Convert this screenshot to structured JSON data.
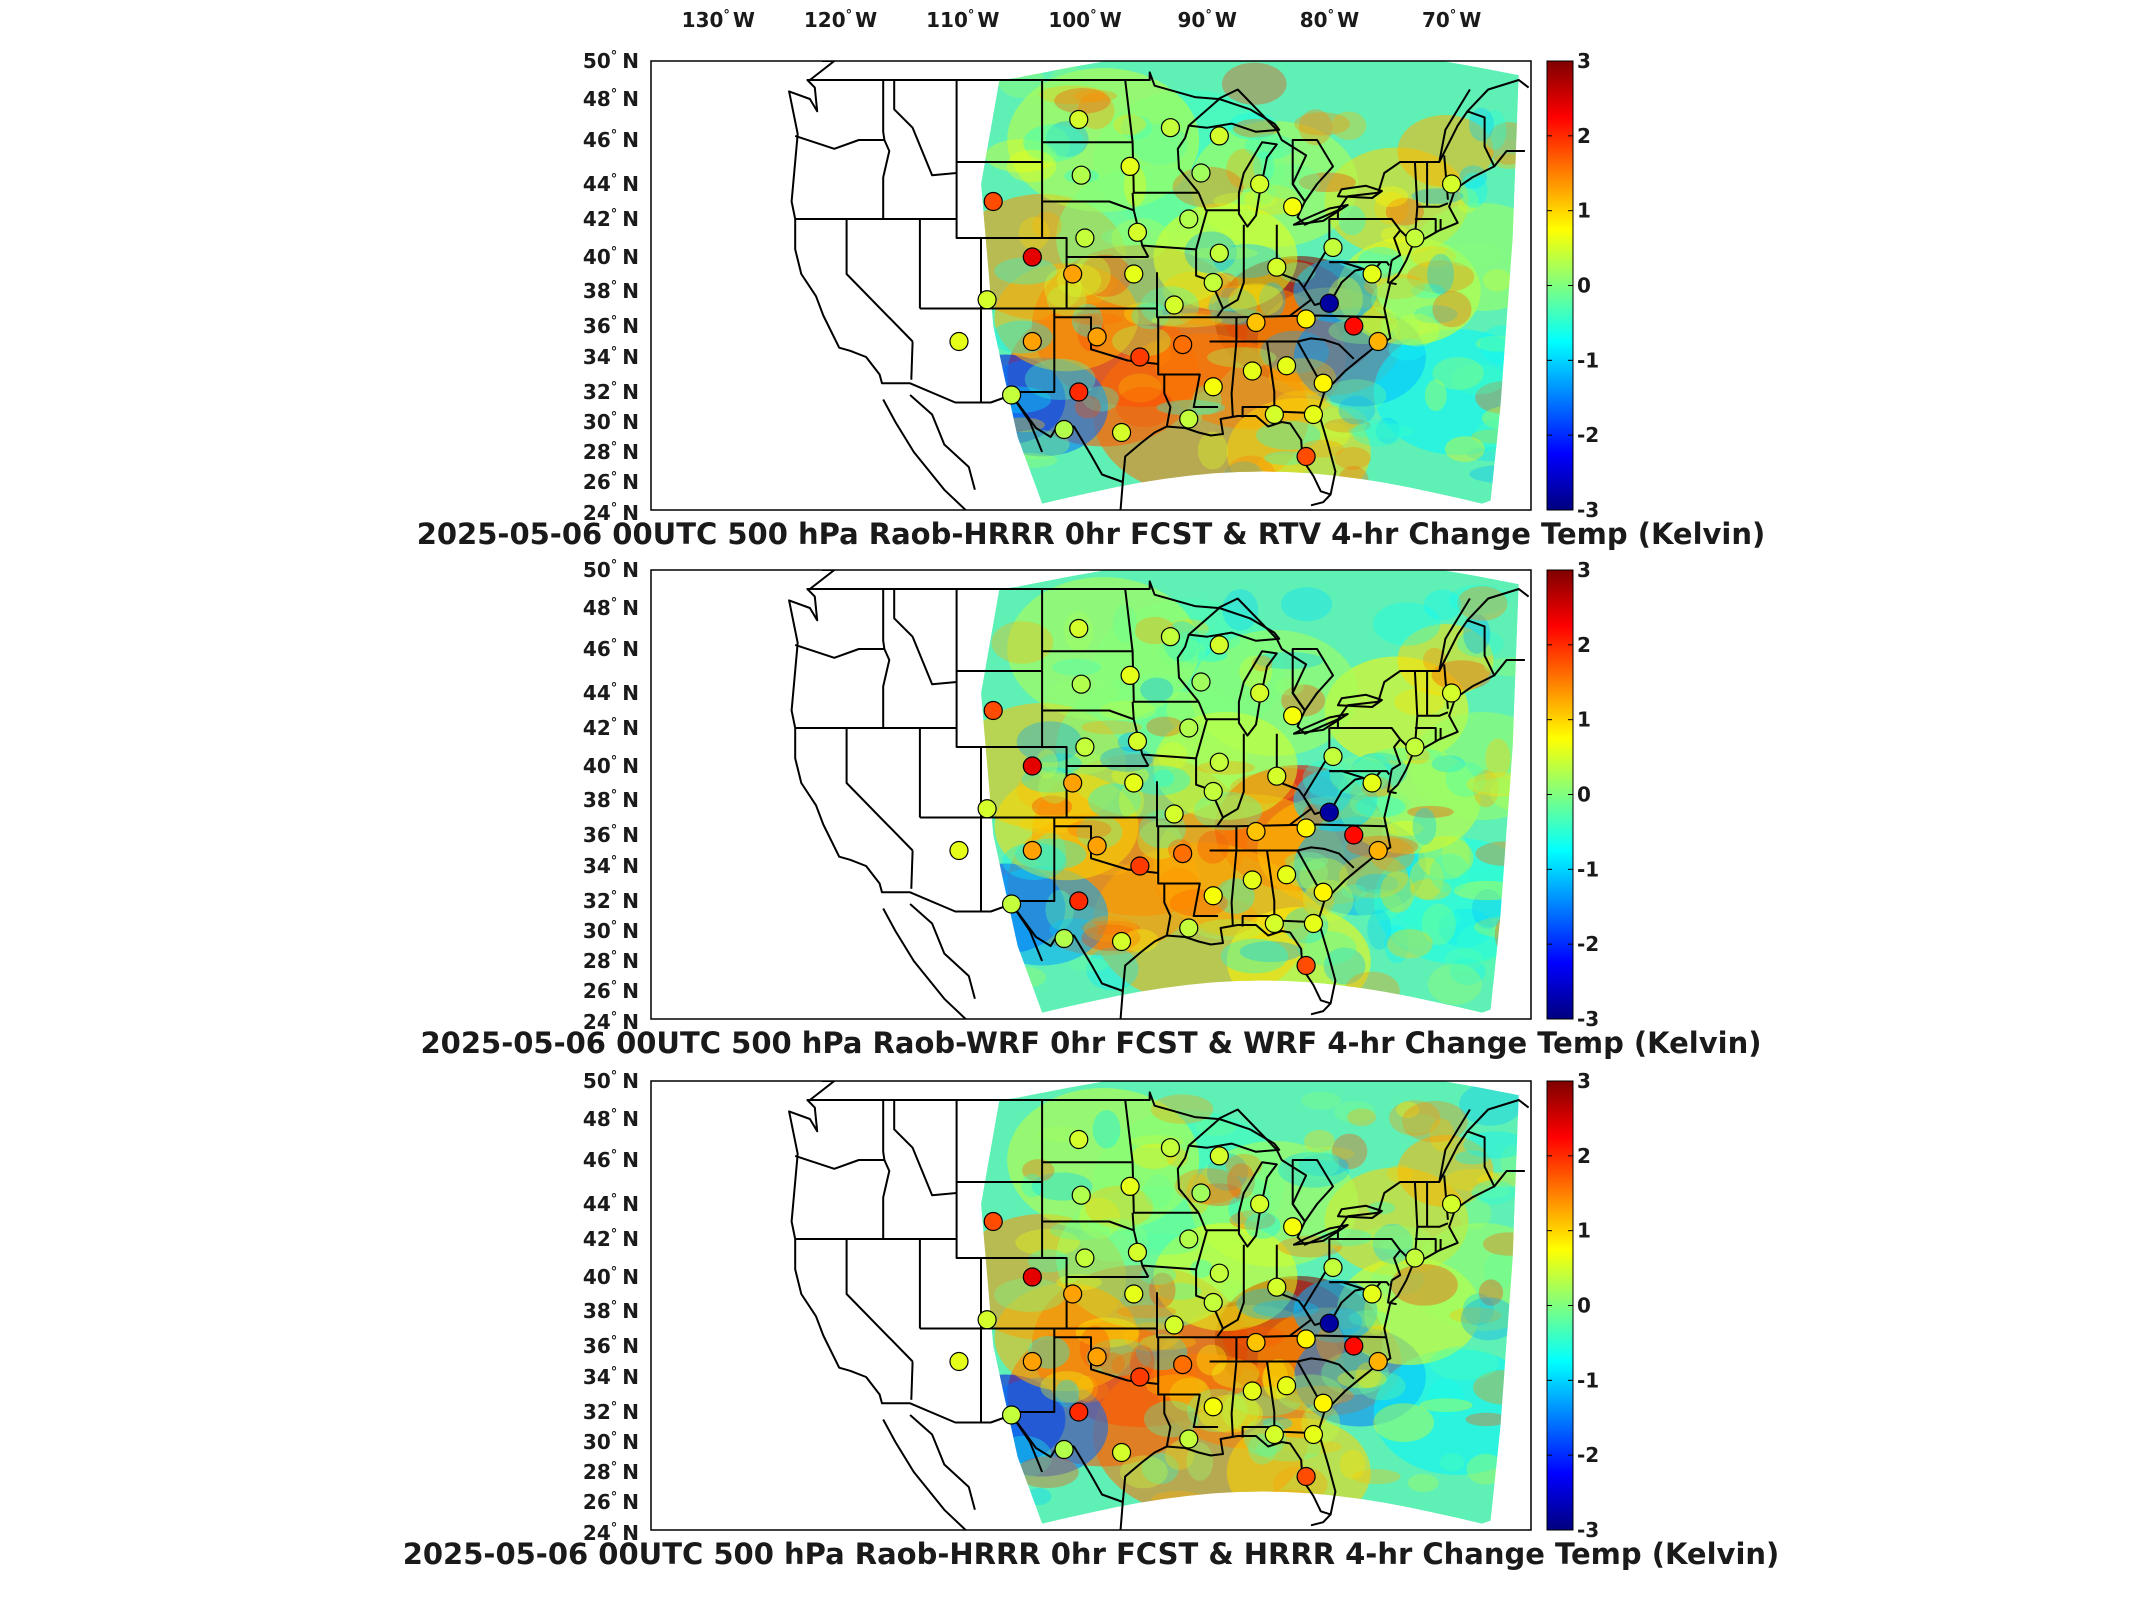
{
  "longitude_ticks": [
    "130",
    "120",
    "110",
    "100",
    "90",
    "80",
    "70"
  ],
  "longitude_suffix": "W",
  "latitude_ticks": [
    "50",
    "48",
    "46",
    "44",
    "42",
    "40",
    "38",
    "36",
    "34",
    "32",
    "30",
    "28",
    "26",
    "24"
  ],
  "latitude_suffix": "N",
  "degree_symbol": "°",
  "colorbar": {
    "ticks": [
      "3",
      "2",
      "1",
      "0",
      "-1",
      "-2",
      "-3"
    ],
    "range": [
      -3,
      3
    ],
    "colormap": [
      "#00007f",
      "#0000ff",
      "#007fff",
      "#00ffff",
      "#7fff7f",
      "#ffff00",
      "#ff7f00",
      "#ff0000",
      "#7f0000"
    ]
  },
  "colors": {
    "background": "#ffffff",
    "border": "#000000",
    "state_lines": "#000000",
    "text": "#1a1a1a"
  },
  "panels": [
    {
      "title": "2025-05-06 00UTC 500 hPa Raob-HRRR 0hr FCST & RTV 4-hr Change Temp (Kelvin)",
      "field_model": "RTV"
    },
    {
      "title": "2025-05-06 00UTC 500 hPa Raob-WRF 0hr FCST & WRF 4-hr Change Temp (Kelvin)",
      "field_model": "WRF"
    },
    {
      "title": "2025-05-06 00UTC 500 hPa Raob-HRRR 0hr FCST & HRRR 4-hr Change Temp (Kelvin)",
      "field_model": "HRRR"
    }
  ],
  "raob_stations": [
    {
      "lon": -104.8,
      "lat": 40.0,
      "value": 2.4
    },
    {
      "lon": -108.0,
      "lat": 43.0,
      "value": 1.8
    },
    {
      "lon": -101.0,
      "lat": 47.0,
      "value": 0.5
    },
    {
      "lon": -100.8,
      "lat": 44.4,
      "value": 0.3
    },
    {
      "lon": -96.8,
      "lat": 44.8,
      "value": 0.6
    },
    {
      "lon": -93.5,
      "lat": 46.6,
      "value": 0.4
    },
    {
      "lon": -91.0,
      "lat": 44.5,
      "value": 0.2
    },
    {
      "lon": -89.5,
      "lat": 46.2,
      "value": 0.5
    },
    {
      "lon": -86.2,
      "lat": 44.0,
      "value": 0.5
    },
    {
      "lon": -83.5,
      "lat": 42.7,
      "value": 0.7
    },
    {
      "lon": -84.8,
      "lat": 39.4,
      "value": 0.5
    },
    {
      "lon": -80.2,
      "lat": 40.5,
      "value": 0.4
    },
    {
      "lon": -89.5,
      "lat": 40.2,
      "value": 0.4
    },
    {
      "lon": -92.0,
      "lat": 42.0,
      "value": 0.3
    },
    {
      "lon": -96.2,
      "lat": 41.3,
      "value": 0.5
    },
    {
      "lon": -100.5,
      "lat": 41.0,
      "value": 0.4
    },
    {
      "lon": -101.5,
      "lat": 39.0,
      "value": 1.3
    },
    {
      "lon": -96.5,
      "lat": 39.0,
      "value": 0.6
    },
    {
      "lon": -93.2,
      "lat": 37.2,
      "value": 0.5
    },
    {
      "lon": -90.0,
      "lat": 38.5,
      "value": 0.4
    },
    {
      "lon": -86.5,
      "lat": 36.2,
      "value": 1.1
    },
    {
      "lon": -82.4,
      "lat": 36.4,
      "value": 0.8
    },
    {
      "lon": -80.5,
      "lat": 37.3,
      "value": -2.8
    },
    {
      "lon": -78.5,
      "lat": 36.0,
      "value": 2.2
    },
    {
      "lon": -76.5,
      "lat": 35.0,
      "value": 1.2
    },
    {
      "lon": -77.0,
      "lat": 39.0,
      "value": 0.6
    },
    {
      "lon": -73.5,
      "lat": 41.0,
      "value": 0.4
    },
    {
      "lon": -70.5,
      "lat": 44.0,
      "value": 0.5
    },
    {
      "lon": -99.5,
      "lat": 35.3,
      "value": 1.3
    },
    {
      "lon": -96.0,
      "lat": 34.0,
      "value": 1.9
    },
    {
      "lon": -92.5,
      "lat": 34.8,
      "value": 1.6
    },
    {
      "lon": -90.0,
      "lat": 32.3,
      "value": 0.7
    },
    {
      "lon": -86.8,
      "lat": 33.2,
      "value": 0.6
    },
    {
      "lon": -84.0,
      "lat": 33.5,
      "value": 0.6
    },
    {
      "lon": -81.0,
      "lat": 32.5,
      "value": 0.8
    },
    {
      "lon": -92.0,
      "lat": 30.2,
      "value": 0.4
    },
    {
      "lon": -97.5,
      "lat": 29.3,
      "value": 0.5
    },
    {
      "lon": -101.0,
      "lat": 32.0,
      "value": 2.0
    },
    {
      "lon": -106.5,
      "lat": 31.8,
      "value": 0.4
    },
    {
      "lon": -102.2,
      "lat": 29.5,
      "value": 0.3
    },
    {
      "lon": -104.8,
      "lat": 35.0,
      "value": 1.3
    },
    {
      "lon": -110.8,
      "lat": 35.0,
      "value": 0.6
    },
    {
      "lon": -108.5,
      "lat": 37.5,
      "value": 0.5
    },
    {
      "lon": -82.4,
      "lat": 27.7,
      "value": 1.8
    },
    {
      "lon": -81.8,
      "lat": 30.5,
      "value": 0.6
    },
    {
      "lon": -85.0,
      "lat": 30.5,
      "value": 0.5
    }
  ]
}
